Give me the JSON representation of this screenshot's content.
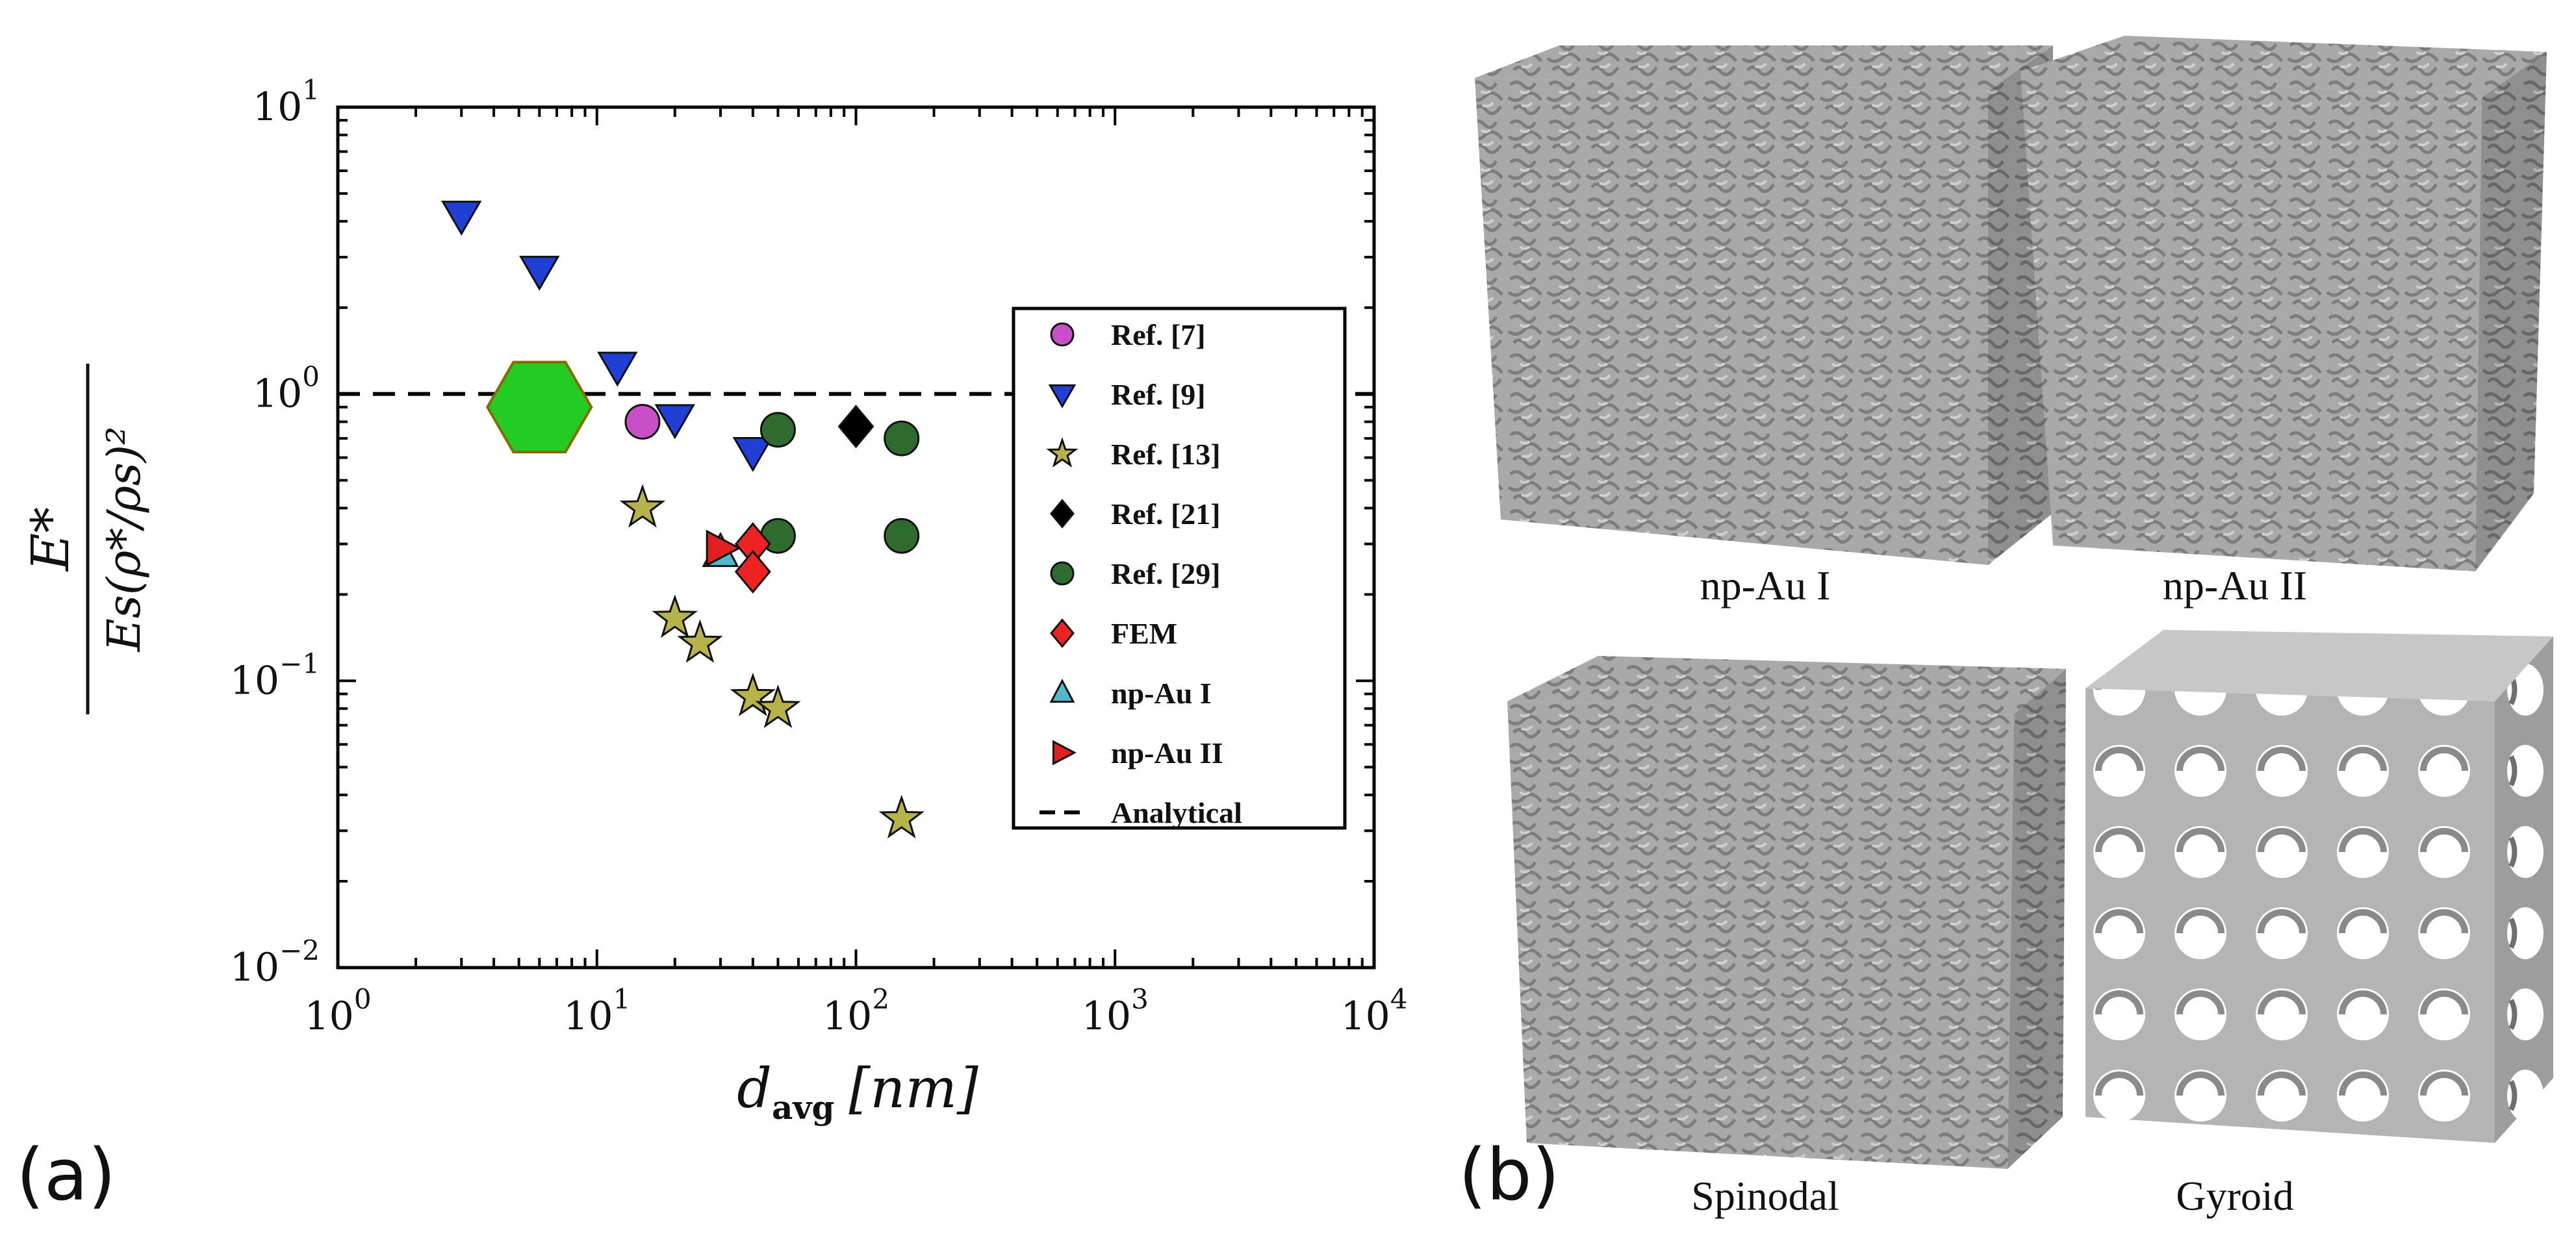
{
  "panels": {
    "a_label": "(a)",
    "b_label": "(b)"
  },
  "chart_data": {
    "type": "scatter",
    "xscale": "log",
    "yscale": "log",
    "xlim": [
      1,
      10000
    ],
    "ylim": [
      0.01,
      10
    ],
    "x_ticks": [
      {
        "value": 1,
        "base": "10",
        "exp": "0"
      },
      {
        "value": 10,
        "base": "10",
        "exp": "1"
      },
      {
        "value": 100,
        "base": "10",
        "exp": "2"
      },
      {
        "value": 1000,
        "base": "10",
        "exp": "3"
      },
      {
        "value": 10000,
        "base": "10",
        "exp": "4"
      }
    ],
    "y_ticks": [
      {
        "value": 0.01,
        "base": "10",
        "exp": "−2"
      },
      {
        "value": 0.1,
        "base": "10",
        "exp": "−1"
      },
      {
        "value": 1,
        "base": "10",
        "exp": "0"
      },
      {
        "value": 10,
        "base": "10",
        "exp": "1"
      }
    ],
    "xlabel": {
      "main": "d",
      "sub": "avg",
      "units": "[nm]"
    },
    "ylabel": {
      "numerator": "E*",
      "denominator": "Es(ρ*/ρs)²"
    },
    "legend_position": "right",
    "series": [
      {
        "name": "Ref. [7]",
        "marker": "circle",
        "color": "#c84fc8",
        "points": [
          [
            15,
            0.8
          ]
        ]
      },
      {
        "name": "Ref. [9]",
        "marker": "triangle-down",
        "color": "#1f3fd6",
        "points": [
          [
            3,
            4.2
          ],
          [
            6,
            2.7
          ],
          [
            12,
            1.25
          ],
          [
            20,
            0.82
          ],
          [
            40,
            0.63
          ]
        ]
      },
      {
        "name": "Ref. [13]",
        "marker": "star",
        "color": "#b6b348",
        "points": [
          [
            15,
            0.4
          ],
          [
            20,
            0.165
          ],
          [
            25,
            0.135
          ],
          [
            40,
            0.088
          ],
          [
            50,
            0.08
          ],
          [
            150,
            0.033
          ]
        ]
      },
      {
        "name": "Ref. [21]",
        "marker": "diamond",
        "color": "#000000",
        "points": [
          [
            100,
            0.77
          ]
        ]
      },
      {
        "name": "Ref. [29]",
        "marker": "circle",
        "color": "#2f6b2f",
        "points": [
          [
            50,
            0.75
          ],
          [
            50,
            0.32
          ],
          [
            150,
            0.7
          ],
          [
            150,
            0.32
          ]
        ]
      },
      {
        "name": "FEM",
        "marker": "diamond",
        "color": "#ee2222",
        "points": [
          [
            40,
            0.3
          ],
          [
            40,
            0.24
          ]
        ]
      },
      {
        "name": "np-Au I",
        "marker": "triangle-up",
        "color": "#4fb8c9",
        "points": [
          [
            30,
            0.28
          ]
        ]
      },
      {
        "name": "np-Au II",
        "marker": "triangle-right",
        "color": "#e02020",
        "points": [
          [
            30,
            0.29
          ]
        ]
      },
      {
        "name": "Analytical",
        "marker": "dashed-line",
        "color": "#000000",
        "y": 1.0
      }
    ],
    "highlight": {
      "marker": "hexagon",
      "color": "#22cc22",
      "point": [
        6,
        0.9
      ]
    }
  },
  "cubes": [
    {
      "id": "np-au-1",
      "caption": "np-Au I"
    },
    {
      "id": "np-au-2",
      "caption": "np-Au II"
    },
    {
      "id": "spinodal",
      "caption": "Spinodal"
    },
    {
      "id": "gyroid",
      "caption": "Gyroid"
    }
  ]
}
